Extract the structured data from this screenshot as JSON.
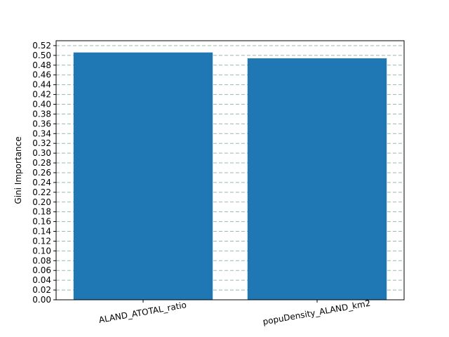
{
  "chart_data": {
    "type": "bar",
    "title": "",
    "xlabel": "",
    "ylabel": "Gini Importance",
    "categories": [
      "ALAND_ATOTAL_ratio",
      "popuDensity_ALAND_km2"
    ],
    "values": [
      0.506,
      0.494
    ],
    "ylim": [
      0,
      0.53
    ],
    "ytick_step": 0.02,
    "ytick_max": 0.52,
    "grid": "y",
    "grid_style": "dashed",
    "xtick_rotation_deg": 10,
    "colors": {
      "bar": "#1f77b4",
      "grid": "#9ab8b0",
      "axis": "#000000"
    }
  }
}
